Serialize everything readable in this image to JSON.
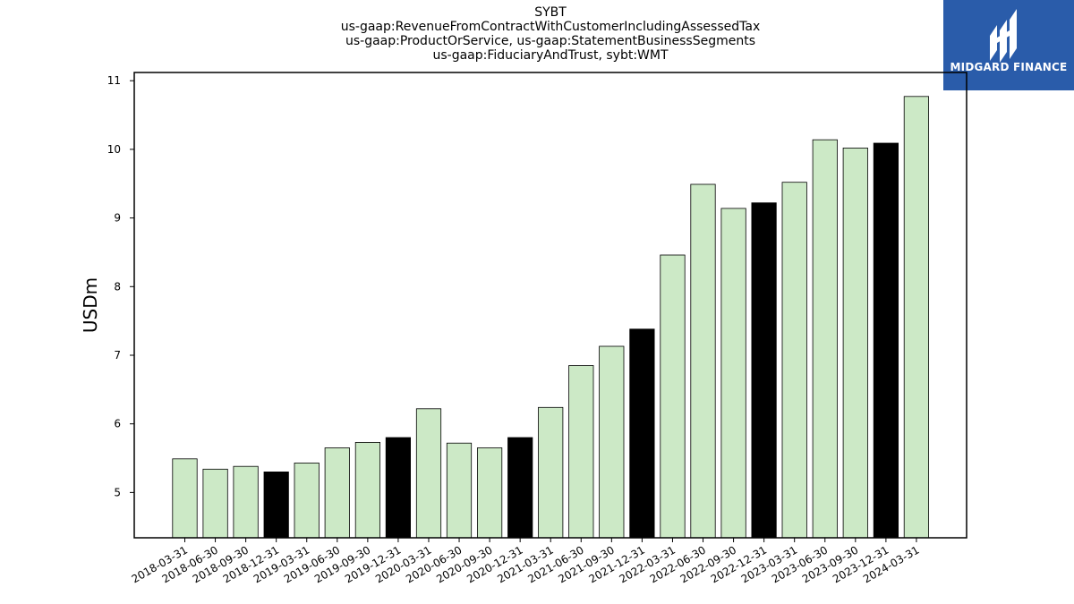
{
  "title_lines": [
    "SYBT",
    "us-gaap:RevenueFromContractWithCustomerIncludingAssessedTax",
    "us-gaap:ProductOrService, us-gaap:StatementBusinessSegments",
    "us-gaap:FiduciaryAndTrust, sybt:WMT"
  ],
  "logo": {
    "text": "MIDGARD FINANCE",
    "color": "#2a5caa"
  },
  "chart_data": {
    "type": "bar",
    "ylabel": "USDm",
    "xlabel": "",
    "ylim": [
      4.34,
      11.12
    ],
    "yticks": [
      5,
      6,
      7,
      8,
      9,
      10,
      11
    ],
    "grid": false,
    "colors": {
      "quarter": "#cce9c6",
      "year_end": "#000000",
      "edge": "#000000"
    },
    "categories": [
      "2018-03-31",
      "2018-06-30",
      "2018-09-30",
      "2018-12-31",
      "2019-03-31",
      "2019-06-30",
      "2019-09-30",
      "2019-12-31",
      "2020-03-31",
      "2020-06-30",
      "2020-09-30",
      "2020-12-31",
      "2021-03-31",
      "2021-06-30",
      "2021-09-30",
      "2021-12-31",
      "2022-03-31",
      "2022-06-30",
      "2022-09-30",
      "2022-12-31",
      "2023-03-31",
      "2023-06-30",
      "2023-09-30",
      "2023-12-31",
      "2024-03-31"
    ],
    "values": [
      5.49,
      5.34,
      5.38,
      5.3,
      5.43,
      5.65,
      5.73,
      5.8,
      6.22,
      5.72,
      5.65,
      5.8,
      6.24,
      6.85,
      7.13,
      7.38,
      8.46,
      9.49,
      9.14,
      9.22,
      9.52,
      10.14,
      10.02,
      10.09,
      10.77
    ],
    "highlight": [
      false,
      false,
      false,
      true,
      false,
      false,
      false,
      true,
      false,
      false,
      false,
      true,
      false,
      false,
      false,
      true,
      false,
      false,
      false,
      true,
      false,
      false,
      false,
      true,
      false
    ]
  }
}
